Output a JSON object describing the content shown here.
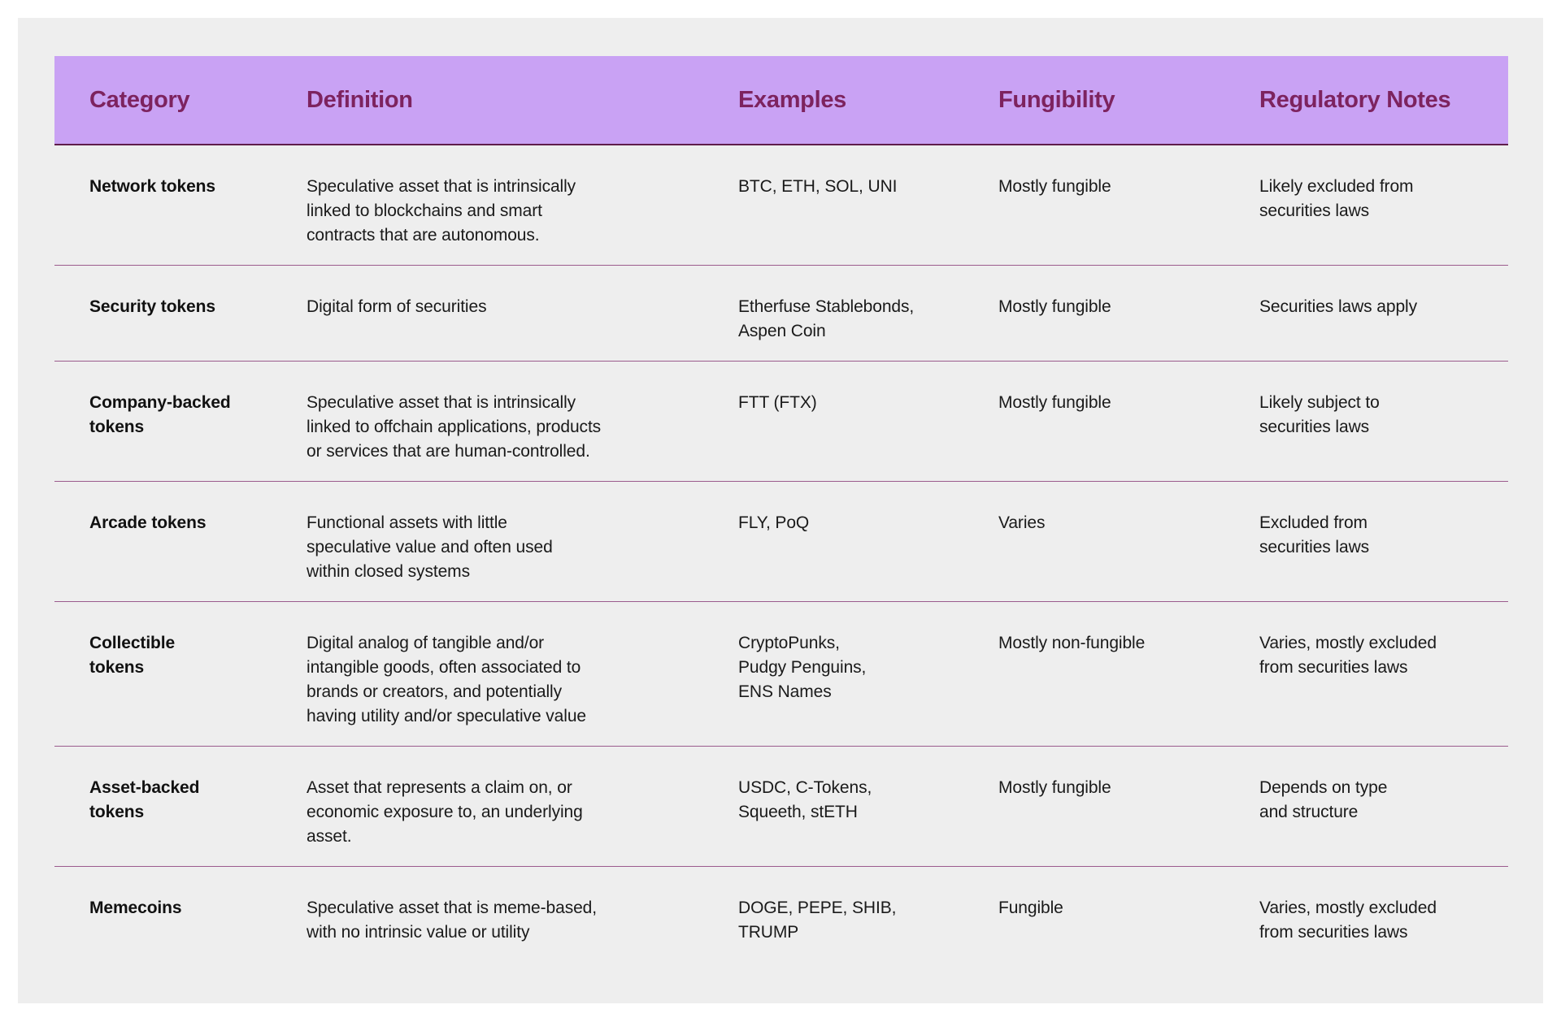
{
  "chart_data": {
    "type": "table",
    "columns": [
      "Category",
      "Definition",
      "Examples",
      "Fungibility",
      "Regulatory Notes"
    ],
    "rows": [
      {
        "category": "Network tokens",
        "definition": "Speculative asset that is intrinsically\nlinked to blockchains and smart\ncontracts that are autonomous.",
        "examples": "BTC, ETH, SOL, UNI",
        "fungibility": "Mostly fungible",
        "regulatory_notes": "Likely excluded from\nsecurities laws"
      },
      {
        "category": "Security tokens",
        "definition": "Digital form of securities",
        "examples": "Etherfuse Stablebonds,\nAspen Coin",
        "fungibility": "Mostly fungible",
        "regulatory_notes": "Securities laws apply"
      },
      {
        "category": "Company-backed\ntokens",
        "definition": "Speculative asset that is intrinsically\nlinked to offchain applications, products\nor services that are human-controlled.",
        "examples": "FTT (FTX)",
        "fungibility": "Mostly fungible",
        "regulatory_notes": "Likely subject to\nsecurities laws"
      },
      {
        "category": "Arcade tokens",
        "definition": "Functional assets with little\nspeculative value and often used\nwithin closed systems",
        "examples": "FLY, PoQ",
        "fungibility": "Varies",
        "regulatory_notes": "Excluded from\nsecurities laws"
      },
      {
        "category": "Collectible\ntokens",
        "definition": "Digital analog of tangible and/or\nintangible goods, often associated to\nbrands or creators, and potentially\nhaving utility and/or speculative value",
        "examples": "CryptoPunks,\nPudgy Penguins,\nENS Names",
        "fungibility": "Mostly non-fungible",
        "regulatory_notes": "Varies, mostly excluded\nfrom securities laws"
      },
      {
        "category": "Asset-backed\ntokens",
        "definition": "Asset that represents a claim on, or\neconomic exposure to, an underlying\nasset.",
        "examples": "USDC, C-Tokens,\nSqueeth, stETH",
        "fungibility": "Mostly fungible",
        "regulatory_notes": "Depends on type\nand structure"
      },
      {
        "category": "Memecoins",
        "definition": "Speculative asset that is meme-based,\nwith no intrinsic value or utility",
        "examples": "DOGE, PEPE, SHIB,\nTRUMP",
        "fungibility": "Fungible",
        "regulatory_notes": "Varies, mostly excluded\nfrom securities laws"
      }
    ],
    "layout": {
      "legend": false,
      "grid": "horizontal-row-dividers",
      "header_position": "top"
    }
  },
  "colors": {
    "header_bg": "#c9a2f4",
    "header_text": "#7d235f",
    "header_border": "#5f1d4a",
    "row_divider": "#9b5b8d",
    "panel_bg": "#eeeeee",
    "body_text": "#1a1a1a"
  }
}
